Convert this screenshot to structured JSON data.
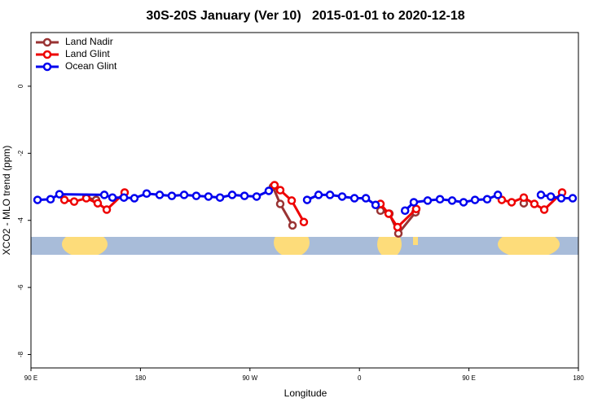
{
  "chart_data": {
    "type": "line",
    "title": "30S-20S January (Ver 10)   2015-01-01 to 2020-12-18",
    "x_label": "Longitude",
    "y_label": "XCO2 - MLO trend (ppm)",
    "xlim": [
      90,
      540
    ],
    "xticks": [
      {
        "value": 90,
        "label": "90 E"
      },
      {
        "value": 180,
        "label": "180"
      },
      {
        "value": 270,
        "label": "90 W"
      },
      {
        "value": 360,
        "label": "0"
      },
      {
        "value": 450,
        "label": "90 E"
      },
      {
        "value": 540,
        "label": "180"
      }
    ],
    "ylim": [
      -8.4,
      1.6
    ],
    "yticks": [
      0,
      -2,
      -4,
      -6,
      -8
    ],
    "legend": "top-left",
    "series": [
      {
        "name": "Land Nadir",
        "color": "#993333",
        "x": [
          135.5,
          143.6,
          null,
          288.9,
          294.9,
          305,
          null,
          377.3,
          384.6,
          392,
          406.1,
          null,
          495.1
        ],
        "values": [
          -3.32,
          -3.39,
          null,
          -3.0,
          -3.51,
          -4.15,
          null,
          -3.71,
          -3.8,
          -4.39,
          -3.76,
          null,
          -3.49
        ]
      },
      {
        "name": "Land Glint",
        "color": "#ee0000",
        "x": [
          117.5,
          125.5,
          135.5,
          144.9,
          152.3,
          167,
          null,
          290.2,
          294.9,
          304.3,
          314.3,
          null,
          377.3,
          384,
          391.3,
          406.7,
          null,
          477,
          485.1,
          495.1,
          503.8,
          511.9,
          526.6
        ],
        "values": [
          -3.39,
          -3.44,
          -3.34,
          -3.49,
          -3.68,
          -3.17,
          null,
          -2.95,
          -3.1,
          -3.41,
          -4.05,
          null,
          -3.51,
          -3.8,
          -4.2,
          -3.66,
          null,
          -3.39,
          -3.46,
          -3.32,
          -3.51,
          -3.68,
          -3.17
        ]
      },
      {
        "name": "Ocean Glint",
        "color": "#0000ee",
        "x": [
          95.4,
          106.1,
          113.4,
          150.3,
          157,
          166.4,
          175,
          185.1,
          195.8,
          205.8,
          215.9,
          225.9,
          235.9,
          245.4,
          255.4,
          265.5,
          275.5,
          285.5,
          null,
          317,
          326.4,
          335.8,
          345.8,
          355.9,
          365.3,
          373.3,
          null,
          397.5,
          404.7,
          416.1,
          426.2,
          436.2,
          445.6,
          455,
          465,
          473.8,
          null,
          509.2,
          517.3,
          525.9,
          535.3
        ],
        "values": [
          -3.39,
          -3.37,
          -3.22,
          -3.24,
          -3.32,
          -3.32,
          -3.34,
          -3.2,
          -3.24,
          -3.27,
          -3.24,
          -3.27,
          -3.29,
          -3.32,
          -3.24,
          -3.27,
          -3.29,
          -3.12,
          null,
          -3.39,
          -3.24,
          -3.24,
          -3.29,
          -3.34,
          -3.34,
          -3.54,
          null,
          -3.71,
          -3.46,
          -3.41,
          -3.37,
          -3.41,
          -3.46,
          -3.39,
          -3.37,
          -3.24,
          null,
          -3.24,
          -3.29,
          -3.34,
          -3.34
        ]
      }
    ]
  }
}
